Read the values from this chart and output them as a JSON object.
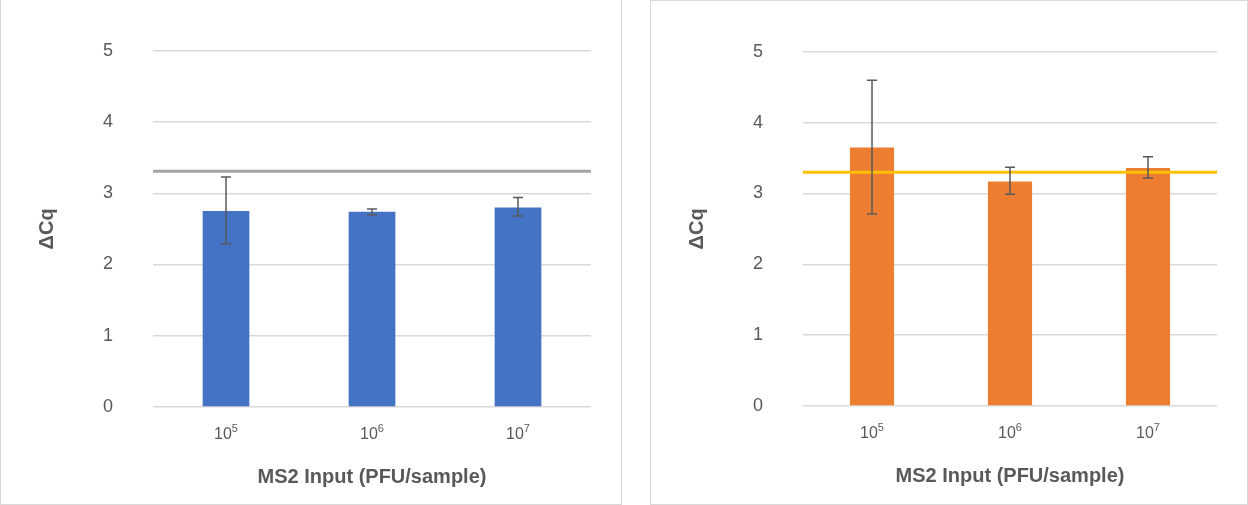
{
  "chart_data": [
    {
      "type": "bar",
      "xlabel": "MS2 Input (PFU/sample)",
      "ylabel": "ΔCq",
      "categories": [
        "10$^{5}$",
        "10$^{6}$",
        "10$^{7}$"
      ],
      "values": [
        2.75,
        2.74,
        2.8
      ],
      "color": "#4472c4",
      "errors": [
        [
          2.29,
          3.23
        ],
        [
          2.7,
          2.78
        ],
        [
          2.68,
          2.94
        ]
      ],
      "ylim": [
        0,
        5
      ],
      "yticks": [
        0,
        1,
        2,
        3,
        4,
        5
      ],
      "grid": "y",
      "ref_lines": [
        {
          "axis": "y",
          "value": 3.31,
          "color": "#a5a5a5"
        }
      ]
    },
    {
      "type": "bar",
      "xlabel": "MS2 Input (PFU/sample)",
      "ylabel": "ΔCq",
      "categories": [
        "10$^{5}$",
        "10$^{6}$",
        "10$^{7}$"
      ],
      "values": [
        3.65,
        3.17,
        3.36
      ],
      "color": "#ed7d31",
      "errors": [
        [
          2.71,
          4.6
        ],
        [
          2.99,
          3.37
        ],
        [
          3.22,
          3.52
        ]
      ],
      "ylim": [
        0,
        5
      ],
      "yticks": [
        0,
        1,
        2,
        3,
        4,
        5
      ],
      "grid": "y",
      "ref_lines": [
        {
          "axis": "y",
          "value": 3.3,
          "color": "#ffc000"
        }
      ]
    }
  ]
}
